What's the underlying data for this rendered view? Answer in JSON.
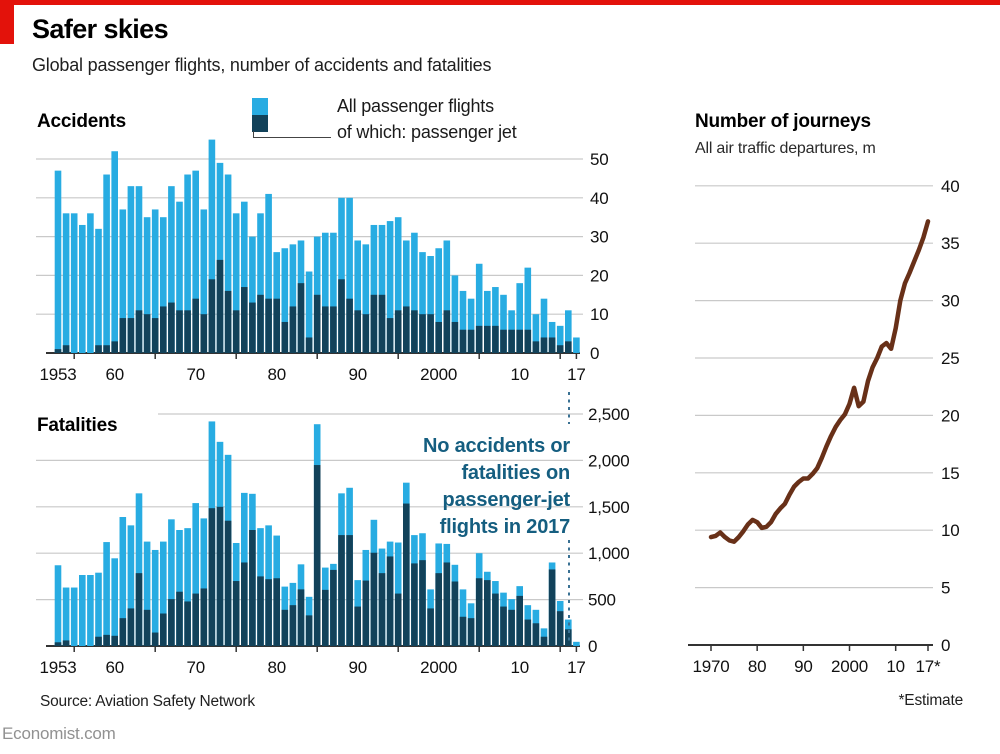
{
  "page": {
    "title": "Safer skies",
    "subtitle": "Global passenger flights, number of accidents and fatalities",
    "source": "Source: Aviation Safety Network",
    "site": "Economist.com",
    "estimate_note": "*Estimate",
    "accent_red": "#E3120B"
  },
  "legend": {
    "all_label": "All passenger flights",
    "jet_label": "of which: passenger jet"
  },
  "annotation": {
    "lines": [
      "No accidents or",
      "fatalities on",
      "passenger-jet",
      "flights in 2017"
    ],
    "color": "#155E80",
    "dash_color": "#3A7193"
  },
  "chart_data": [
    {
      "id": "accidents",
      "type": "bar",
      "title": "Accidents",
      "years": {
        "start": 1953,
        "end": 2017
      },
      "ylim": [
        0,
        50
      ],
      "yticks": [
        0,
        10,
        20,
        30,
        40,
        50
      ],
      "ytick_labels": [
        "0",
        "10",
        "20",
        "30",
        "40",
        "50"
      ],
      "xtick_labels": [
        {
          "label": "1953",
          "year": 1953
        },
        {
          "label": "60",
          "year": 1960
        },
        {
          "label": "70",
          "year": 1970
        },
        {
          "label": "80",
          "year": 1980
        },
        {
          "label": "90",
          "year": 1990
        },
        {
          "label": "2000",
          "year": 2000
        },
        {
          "label": "10",
          "year": 2010
        },
        {
          "label": "17",
          "year": 2017
        }
      ],
      "series": [
        {
          "name": "All passenger flights",
          "color": "#28ACE2",
          "values": [
            47,
            36,
            36,
            33,
            36,
            32,
            46,
            52,
            37,
            43,
            43,
            35,
            37,
            35,
            43,
            39,
            46,
            47,
            37,
            55,
            49,
            46,
            36,
            39,
            30,
            36,
            41,
            26,
            27,
            28,
            29,
            21,
            30,
            31,
            31,
            40,
            40,
            29,
            28,
            33,
            33,
            34,
            35,
            29,
            31,
            26,
            25,
            27,
            29,
            20,
            16,
            14,
            23,
            16,
            17,
            15,
            11,
            18,
            22,
            10,
            14,
            8,
            7,
            11,
            4
          ]
        },
        {
          "name": "of which: passenger jet",
          "color": "#12425A",
          "values": [
            1,
            2,
            0,
            0,
            0,
            2,
            2,
            3,
            9,
            9,
            11,
            10,
            9,
            12,
            13,
            11,
            11,
            14,
            10,
            19,
            24,
            16,
            11,
            17,
            13,
            15,
            14,
            14,
            8,
            12,
            18,
            4,
            15,
            12,
            12,
            19,
            14,
            11,
            10,
            15,
            15,
            9,
            11,
            12,
            11,
            10,
            10,
            8,
            11,
            8,
            6,
            6,
            7,
            7,
            7,
            6,
            6,
            6,
            6,
            3,
            4,
            4,
            2,
            3,
            0
          ]
        }
      ]
    },
    {
      "id": "fatalities",
      "type": "bar",
      "title": "Fatalities",
      "years": {
        "start": 1953,
        "end": 2017
      },
      "ylim": [
        0,
        2500
      ],
      "yticks": [
        0,
        500,
        1000,
        1500,
        2000,
        2500
      ],
      "ytick_labels": [
        "0",
        "500",
        "1,000",
        "1,500",
        "2,000",
        "2,500"
      ],
      "xtick_labels": [
        {
          "label": "1953",
          "year": 1953
        },
        {
          "label": "60",
          "year": 1960
        },
        {
          "label": "70",
          "year": 1970
        },
        {
          "label": "80",
          "year": 1980
        },
        {
          "label": "90",
          "year": 1990
        },
        {
          "label": "2000",
          "year": 2000
        },
        {
          "label": "10",
          "year": 2010
        },
        {
          "label": "17",
          "year": 2017
        }
      ],
      "series": [
        {
          "name": "All passenger flights",
          "color": "#28ACE2",
          "values": [
            870,
            630,
            630,
            765,
            765,
            790,
            1120,
            945,
            1390,
            1300,
            1645,
            1125,
            1035,
            1125,
            1365,
            1250,
            1270,
            1540,
            1375,
            2420,
            2200,
            2060,
            1110,
            1650,
            1640,
            1270,
            1300,
            1190,
            640,
            680,
            880,
            530,
            2390,
            845,
            885,
            1645,
            1705,
            710,
            1035,
            1360,
            1050,
            1125,
            1115,
            1760,
            1195,
            1215,
            610,
            1105,
            1100,
            875,
            610,
            460,
            1000,
            800,
            700,
            575,
            505,
            645,
            440,
            390,
            190,
            900,
            485,
            285,
            45
          ]
        },
        {
          "name": "of which: passenger jet",
          "color": "#12425A",
          "values": [
            40,
            60,
            0,
            0,
            0,
            100,
            120,
            110,
            300,
            405,
            785,
            390,
            145,
            350,
            505,
            585,
            480,
            565,
            620,
            1485,
            1500,
            1350,
            700,
            900,
            1250,
            750,
            720,
            730,
            390,
            440,
            610,
            330,
            1950,
            605,
            820,
            1195,
            1195,
            425,
            705,
            1005,
            785,
            965,
            565,
            1535,
            890,
            925,
            405,
            785,
            900,
            695,
            315,
            300,
            730,
            710,
            565,
            425,
            390,
            540,
            285,
            245,
            100,
            825,
            375,
            180,
            0
          ]
        }
      ]
    },
    {
      "id": "journeys",
      "type": "line",
      "title": "Number of journeys",
      "subtitle": "All air traffic departures, m",
      "color": "#683018",
      "years": {
        "start": 1970,
        "end": 2017
      },
      "ylim": [
        0,
        40
      ],
      "yticks": [
        0,
        5,
        10,
        15,
        20,
        25,
        30,
        35,
        40
      ],
      "ytick_labels": [
        "0",
        "5",
        "10",
        "15",
        "20",
        "25",
        "30",
        "35",
        "40"
      ],
      "xtick_labels": [
        {
          "label": "1970",
          "year": 1970
        },
        {
          "label": "80",
          "year": 1980
        },
        {
          "label": "90",
          "year": 1990
        },
        {
          "label": "2000",
          "year": 2000
        },
        {
          "label": "10",
          "year": 2010
        },
        {
          "label": "17*",
          "year": 2017
        }
      ],
      "values": [
        9.4,
        9.5,
        9.8,
        9.4,
        9.1,
        9.0,
        9.4,
        9.9,
        10.5,
        10.9,
        10.7,
        10.2,
        10.3,
        10.7,
        11.4,
        11.9,
        12.3,
        13.1,
        13.8,
        14.2,
        14.5,
        14.5,
        14.9,
        15.4,
        16.3,
        17.3,
        18.2,
        19.0,
        19.6,
        20.1,
        21.0,
        22.4,
        20.8,
        21.2,
        23.0,
        24.2,
        25.0,
        26.0,
        26.3,
        25.8,
        27.6,
        30.0,
        31.5,
        32.4,
        33.4,
        34.4,
        35.5,
        36.9
      ]
    }
  ]
}
